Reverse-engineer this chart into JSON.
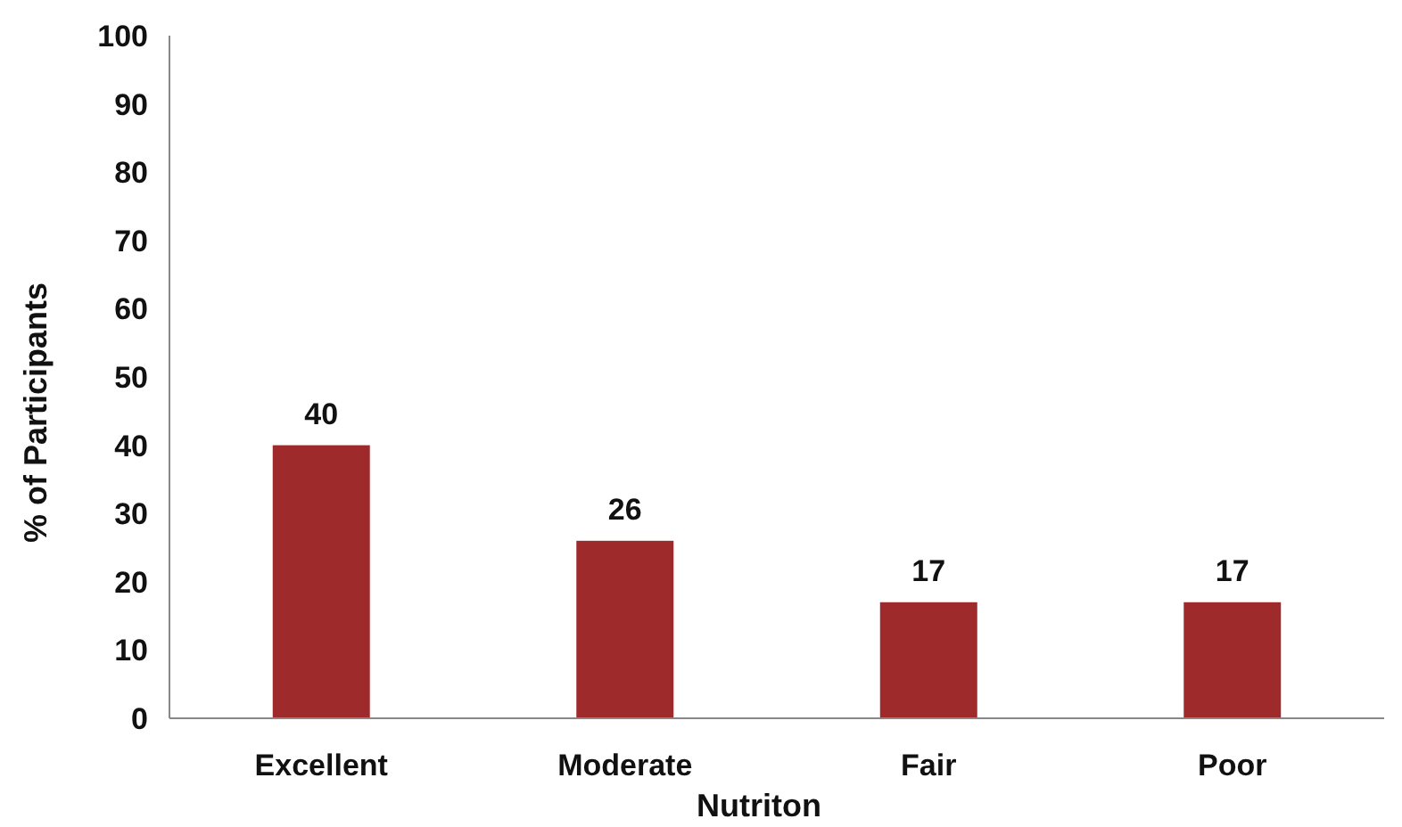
{
  "chart_data": {
    "type": "bar",
    "xlabel": "Nutriton",
    "ylabel": "% of Participants",
    "categories": [
      "Excellent",
      "Moderate",
      "Fair",
      "Poor"
    ],
    "values": [
      40,
      26,
      17,
      17
    ],
    "color": "#9e2a2b",
    "ylim": [
      0,
      100
    ],
    "yticks": [
      0,
      10,
      20,
      30,
      40,
      50,
      60,
      70,
      80,
      90,
      100
    ],
    "grid": false,
    "data_labels": true
  }
}
